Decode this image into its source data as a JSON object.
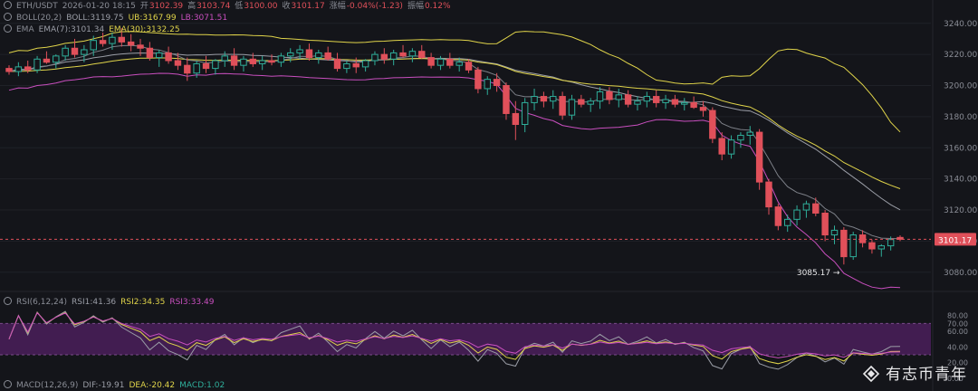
{
  "header": {
    "pair": "ETH/USDT",
    "datetime": "2026-01-20 18:15",
    "open_label": "开",
    "open": "3102.39",
    "high_label": "高",
    "high": "3103.74",
    "low_label": "低",
    "low": "3100.00",
    "close_label": "收",
    "close": "3101.17",
    "change_label": "涨幅",
    "change": "-0.04%(-1.23)",
    "amp_label": "振幅",
    "amp": "0.12%"
  },
  "boll": {
    "label": "BOLL(20,2)",
    "mid": "BOLL:3119.75",
    "ub": "UB:3167.99",
    "lb": "LB:3071.51"
  },
  "ema": {
    "label": "EMA",
    "ema7": "EMA(7):3101.34",
    "ema30": "EMA(30):3132.25"
  },
  "rsi": {
    "label": "RSI(6,12,24)",
    "rsi1": "RSI1:41.36",
    "rsi2": "RSI2:34.35",
    "rsi3": "RSI3:33.49"
  },
  "macd": {
    "label": "MACD(12,26,9)",
    "dif": "DIF:-19.91",
    "dea": "DEA:-20.42",
    "macd": "MACD:1.02"
  },
  "watermark": "有志币青年",
  "colors": {
    "up": "#2fae9a",
    "down": "#e0505a",
    "ub": "#e0d44a",
    "lb": "#c94fbf",
    "mid": "#9a9da6",
    "rsi_band": "#4a1e5c"
  },
  "chart_data": {
    "type": "candlestick",
    "price_axis": {
      "ticks": [
        3080,
        3100,
        3120,
        3140,
        3160,
        3180,
        3200,
        3220,
        3240
      ],
      "ylim": [
        3070,
        3248
      ]
    },
    "last_price_label": "3101.17",
    "low_marker": {
      "label": "3085.17 →",
      "value": 3085.17
    },
    "rsi_axis": {
      "ticks": [
        0,
        20,
        40,
        60,
        70,
        80
      ],
      "band": [
        30,
        70
      ]
    },
    "candles": [
      [
        3211,
        3213,
        3207,
        3209
      ],
      [
        3209,
        3215,
        3206,
        3212
      ],
      [
        3212,
        3216,
        3208,
        3210
      ],
      [
        3210,
        3219,
        3208,
        3217
      ],
      [
        3217,
        3222,
        3214,
        3215
      ],
      [
        3215,
        3220,
        3211,
        3219
      ],
      [
        3219,
        3226,
        3216,
        3224
      ],
      [
        3224,
        3230,
        3218,
        3220
      ],
      [
        3220,
        3226,
        3215,
        3223
      ],
      [
        3223,
        3232,
        3219,
        3229
      ],
      [
        3229,
        3234,
        3225,
        3227
      ],
      [
        3227,
        3234,
        3223,
        3231
      ],
      [
        3231,
        3237,
        3225,
        3228
      ],
      [
        3228,
        3233,
        3222,
        3226
      ],
      [
        3226,
        3230,
        3219,
        3224
      ],
      [
        3224,
        3228,
        3216,
        3218
      ],
      [
        3218,
        3223,
        3212,
        3221
      ],
      [
        3221,
        3225,
        3214,
        3216
      ],
      [
        3216,
        3221,
        3210,
        3213
      ],
      [
        3213,
        3218,
        3203,
        3208
      ],
      [
        3208,
        3216,
        3205,
        3214
      ],
      [
        3214,
        3219,
        3208,
        3211
      ],
      [
        3211,
        3217,
        3207,
        3216
      ],
      [
        3216,
        3222,
        3212,
        3219
      ],
      [
        3219,
        3224,
        3210,
        3213
      ],
      [
        3213,
        3219,
        3209,
        3217
      ],
      [
        3217,
        3221,
        3212,
        3214
      ],
      [
        3214,
        3219,
        3210,
        3216
      ],
      [
        3216,
        3220,
        3213,
        3215
      ],
      [
        3215,
        3221,
        3212,
        3219
      ],
      [
        3219,
        3224,
        3215,
        3221
      ],
      [
        3221,
        3226,
        3217,
        3223
      ],
      [
        3223,
        3227,
        3216,
        3218
      ],
      [
        3218,
        3223,
        3214,
        3221
      ],
      [
        3221,
        3225,
        3216,
        3217
      ],
      [
        3217,
        3221,
        3209,
        3211
      ],
      [
        3211,
        3216,
        3208,
        3214
      ],
      [
        3214,
        3218,
        3208,
        3212
      ],
      [
        3212,
        3217,
        3209,
        3216
      ],
      [
        3216,
        3222,
        3213,
        3220
      ],
      [
        3220,
        3224,
        3214,
        3217
      ],
      [
        3217,
        3223,
        3213,
        3221
      ],
      [
        3221,
        3226,
        3218,
        3219
      ],
      [
        3219,
        3224,
        3215,
        3222
      ],
      [
        3222,
        3226,
        3217,
        3218
      ],
      [
        3218,
        3221,
        3211,
        3213
      ],
      [
        3213,
        3219,
        3210,
        3217
      ],
      [
        3217,
        3221,
        3211,
        3213
      ],
      [
        3213,
        3218,
        3209,
        3215
      ],
      [
        3215,
        3217,
        3208,
        3210
      ],
      [
        3210,
        3212,
        3195,
        3198
      ],
      [
        3198,
        3206,
        3194,
        3204
      ],
      [
        3204,
        3208,
        3196,
        3200
      ],
      [
        3200,
        3202,
        3178,
        3182
      ],
      [
        3182,
        3190,
        3165,
        3175
      ],
      [
        3175,
        3192,
        3170,
        3189
      ],
      [
        3189,
        3198,
        3184,
        3193
      ],
      [
        3193,
        3196,
        3186,
        3190
      ],
      [
        3190,
        3197,
        3185,
        3193
      ],
      [
        3193,
        3196,
        3178,
        3181
      ],
      [
        3181,
        3194,
        3178,
        3191
      ],
      [
        3191,
        3194,
        3186,
        3188
      ],
      [
        3188,
        3192,
        3183,
        3190
      ],
      [
        3190,
        3199,
        3185,
        3196
      ],
      [
        3196,
        3199,
        3188,
        3191
      ],
      [
        3191,
        3198,
        3186,
        3194
      ],
      [
        3194,
        3197,
        3186,
        3188
      ],
      [
        3188,
        3193,
        3184,
        3190
      ],
      [
        3190,
        3196,
        3186,
        3193
      ],
      [
        3193,
        3197,
        3186,
        3189
      ],
      [
        3189,
        3194,
        3185,
        3191
      ],
      [
        3191,
        3194,
        3186,
        3188
      ],
      [
        3188,
        3192,
        3184,
        3189
      ],
      [
        3189,
        3193,
        3185,
        3186
      ],
      [
        3186,
        3190,
        3180,
        3184
      ],
      [
        3184,
        3186,
        3163,
        3166
      ],
      [
        3166,
        3170,
        3152,
        3156
      ],
      [
        3156,
        3168,
        3153,
        3165
      ],
      [
        3165,
        3170,
        3160,
        3168
      ],
      [
        3168,
        3174,
        3162,
        3170
      ],
      [
        3170,
        3172,
        3133,
        3138
      ],
      [
        3138,
        3140,
        3117,
        3122
      ],
      [
        3122,
        3124,
        3107,
        3110
      ],
      [
        3110,
        3117,
        3106,
        3114
      ],
      [
        3114,
        3123,
        3110,
        3120
      ],
      [
        3120,
        3126,
        3115,
        3124
      ],
      [
        3124,
        3128,
        3116,
        3118
      ],
      [
        3118,
        3120,
        3100,
        3104
      ],
      [
        3104,
        3110,
        3098,
        3107
      ],
      [
        3107,
        3109,
        3085,
        3090
      ],
      [
        3090,
        3106,
        3088,
        3104
      ],
      [
        3104,
        3107,
        3096,
        3099
      ],
      [
        3099,
        3101,
        3092,
        3095
      ],
      [
        3095,
        3098,
        3090,
        3097
      ],
      [
        3097,
        3103,
        3094,
        3101
      ],
      [
        3102.39,
        3103.74,
        3100.0,
        3101.17
      ]
    ]
  }
}
